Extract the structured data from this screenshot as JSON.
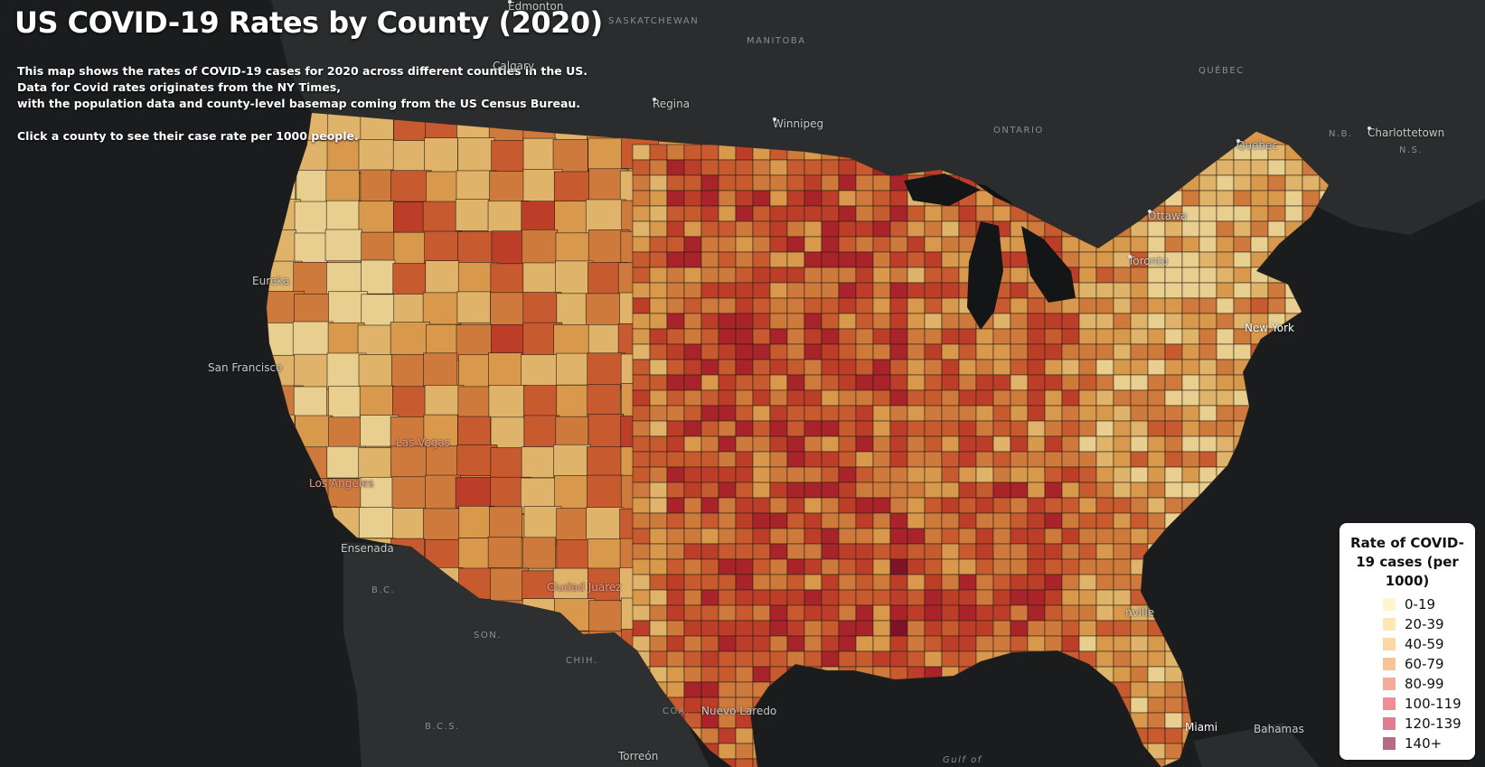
{
  "title": "US COVID-19 Rates by County (2020)",
  "description": {
    "line1": "This map shows the rates of COVID-19 cases for 2020 across different counties in the US.",
    "line2": "Data for Covid rates originates from the NY Times,",
    "line3": "with the population data and county-level basemap coming from the US Census Bureau.",
    "line4": "Click a county to see their case rate per 1000 people."
  },
  "basemap": {
    "cities": {
      "edmonton": "Edmonton",
      "calgary": "Calgary",
      "regina": "Regina",
      "winnipeg": "Winnipeg",
      "quebec": "Quebec",
      "charlottetown": "Charlottetown",
      "ottawa": "Ottawa",
      "toronto": "Toronto",
      "new_york": "New York",
      "san_francisco": "San Francisco",
      "eureka": "Eureka",
      "los_angeles": "Los Angeles",
      "las_vegas": "Las Vegas",
      "ensenada": "Ensenada",
      "miami": "Miami",
      "bahamas": "Bahamas",
      "nuevo_laredo": "Nuevo Laredo",
      "torreon": "Torreón",
      "jacksonville": "nville",
      "ciudad_juarez": "Ciudad Juárez"
    },
    "regions": {
      "saskatchewan": "SASKATCHEWAN",
      "manitoba": "MANITOBA",
      "ontario": "ONTARIO",
      "quebec": "QUÉBEC",
      "nb": "N.B.",
      "ns": "N.S.",
      "bc": "B.C.",
      "son": "SON.",
      "chih": "CHIH.",
      "coa": "COA.",
      "bcs": "B.C.S.",
      "gulf": "Gulf of"
    }
  },
  "legend": {
    "title": "Rate of COVID-19 cases (per 1000)",
    "items": [
      {
        "label": "0-19",
        "color": "#fff7cc"
      },
      {
        "label": "20-39",
        "color": "#fde8b4"
      },
      {
        "label": "40-59",
        "color": "#fbd8a3"
      },
      {
        "label": "60-79",
        "color": "#f9c39a"
      },
      {
        "label": "80-99",
        "color": "#f6aa9a"
      },
      {
        "label": "100-119",
        "color": "#ee8f97"
      },
      {
        "label": "120-139",
        "color": "#dc7f93"
      },
      {
        "label": "140+",
        "color": "#b56b86"
      }
    ]
  },
  "choropleth_colors": [
    "#e8cf8f",
    "#dfb46a",
    "#d9994d",
    "#cf7a3d",
    "#c85a30",
    "#bd3e28",
    "#a9232a",
    "#7e1328"
  ]
}
